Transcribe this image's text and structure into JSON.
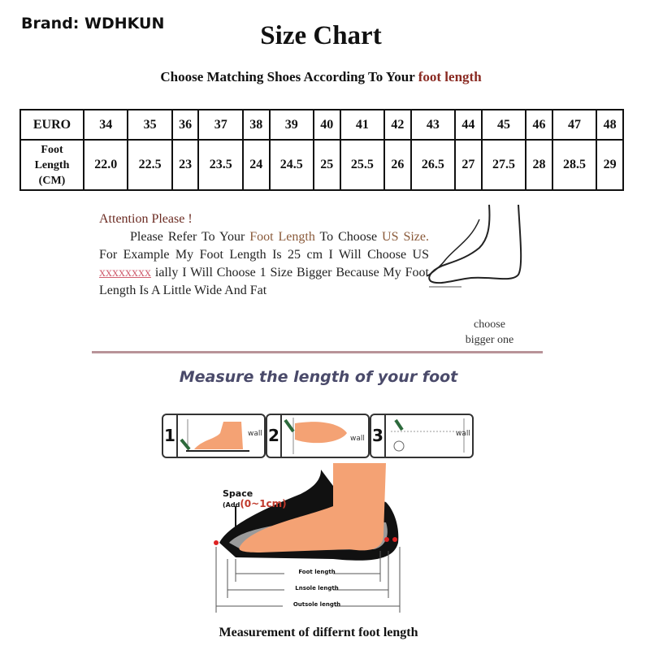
{
  "brand": "Brand: WDHKUN",
  "title": "Size Chart",
  "subtitle": {
    "prefix": "Choose Matching Shoes According To Your ",
    "highlight": "foot length"
  },
  "table": {
    "row_labels": {
      "euro": "EURO",
      "foot_length": [
        "Foot",
        "Length",
        "(CM)"
      ]
    },
    "euro": [
      "34",
      "35",
      "36",
      "37",
      "38",
      "39",
      "40",
      "41",
      "42",
      "43",
      "44",
      "45",
      "46",
      "47",
      "48"
    ],
    "foot_length_cm": [
      "22.0",
      "22.5",
      "23",
      "23.5",
      "24",
      "24.5",
      "25",
      "25.5",
      "26",
      "26.5",
      "27",
      "27.5",
      "28",
      "28.5",
      "29"
    ]
  },
  "attention": {
    "heading": "Attention Please !",
    "p1": "Please Refer To Your ",
    "p1_hl": "Foot Length",
    "p2": " To Choose ",
    "p3_hl": "US Size.",
    "p4": " For Example My Foot Length Is 25 cm I Will Choose US ",
    "p5_x": "xxxxxxxx",
    "p6": " ially I Will Choose 1 Size Bigger Because My Foot Length Is A Little Wide And Fat"
  },
  "choose_note": [
    "choose",
    "bigger one"
  ],
  "measure_heading": "Measure the length of your foot",
  "steps": [
    {
      "num": "1",
      "wall": "wall"
    },
    {
      "num": "2",
      "wall": "wall"
    },
    {
      "num": "3",
      "wall": "wall"
    }
  ],
  "diagram": {
    "space_label": "Space",
    "space_add_prefix": "(Add",
    "space_add_value": "(0~1cm)",
    "foot_length": "Foot length",
    "insole_length": "Lnsole length",
    "outsole_length": "Outsole length"
  },
  "caption": "Measurement of differnt foot length",
  "colors": {
    "accent_text": "#8a2a22",
    "skin": "#f4a274",
    "heading_blue": "#4a4a6a",
    "divider": "#b89398"
  }
}
